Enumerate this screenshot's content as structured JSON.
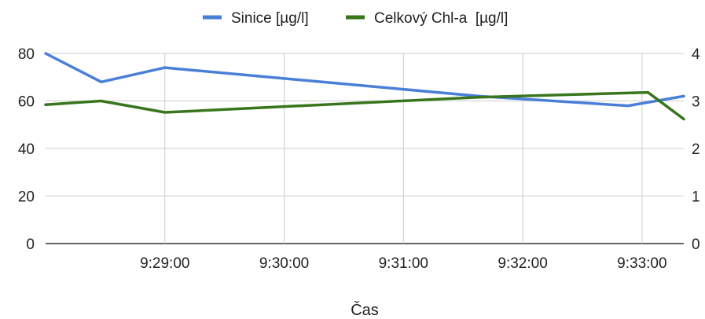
{
  "chart_data": {
    "type": "line",
    "xlabel": "Čas",
    "x_ticks": [
      "9:29:00",
      "9:30:00",
      "9:31:00",
      "9:32:00",
      "9:33:00"
    ],
    "legend_position": "top",
    "grid": true,
    "left_axis": {
      "ylim": [
        0,
        80
      ],
      "ticks": [
        "0",
        "20",
        "40",
        "60",
        "80"
      ]
    },
    "right_axis": {
      "ylim": [
        0,
        4
      ],
      "ticks": [
        "0",
        "1",
        "2",
        "3",
        "4"
      ]
    },
    "series": [
      {
        "name": "Sinice [µg/l]",
        "axis": "left",
        "color": "#4a7fd8",
        "points": [
          {
            "x": "9:28:00",
            "y": 80
          },
          {
            "x": "9:28:28",
            "y": 68
          },
          {
            "x": "9:29:00",
            "y": 74
          },
          {
            "x": "9:31:38",
            "y": 62
          },
          {
            "x": "9:32:53",
            "y": 58
          },
          {
            "x": "9:33:21",
            "y": 62
          }
        ]
      },
      {
        "name": "Celkový Chl-a  [µg/l]",
        "axis": "right",
        "color": "#38761d",
        "points": [
          {
            "x": "9:28:00",
            "y": 2.92
          },
          {
            "x": "9:28:28",
            "y": 3.0
          },
          {
            "x": "9:29:00",
            "y": 2.76
          },
          {
            "x": "9:31:38",
            "y": 3.08
          },
          {
            "x": "9:33:03",
            "y": 3.18
          },
          {
            "x": "9:33:21",
            "y": 2.62
          }
        ]
      }
    ]
  }
}
